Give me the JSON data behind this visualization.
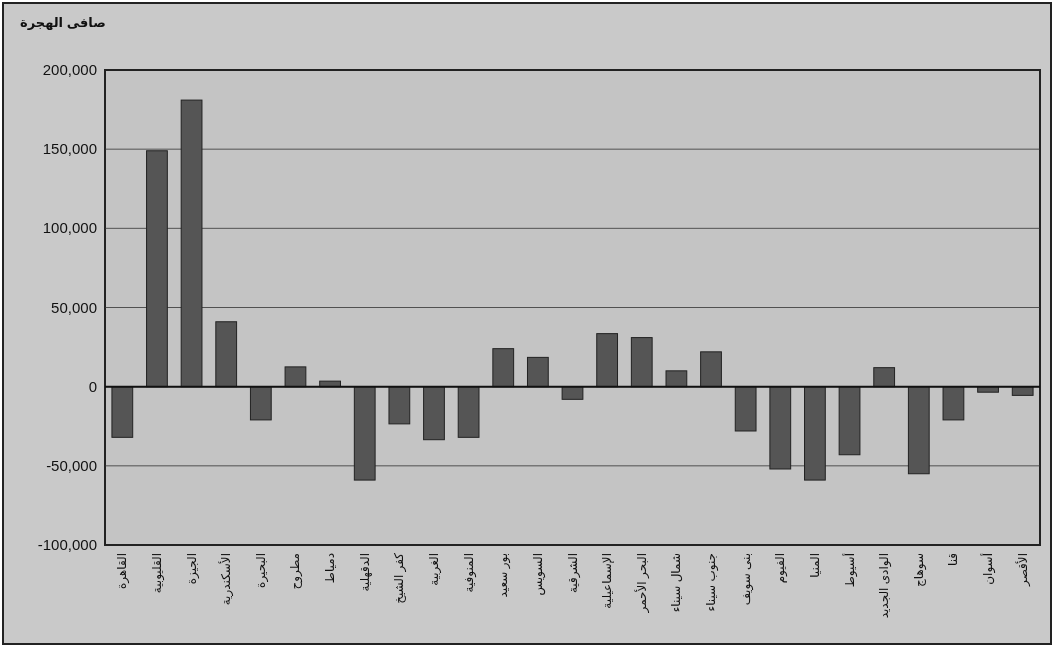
{
  "chart_data": {
    "type": "bar",
    "title": "صافى الهجرة",
    "categories": [
      "القاهرة",
      "القليوبية",
      "الجيزة",
      "الأسكندرية",
      "البحيرة",
      "مطروح",
      "دمياط",
      "الدقهلية",
      "كفر الشيخ",
      "الغربية",
      "المنوفية",
      "بور سعيد",
      "السويس",
      "الشرقية",
      "الإسماعيلية",
      "البحر الأحمر",
      "شمال سيناء",
      "جنوب سيناء",
      "بنى سويف",
      "الفيوم",
      "المنيا",
      "أسيوط",
      "الوادى الجديد",
      "سوهاج",
      "قنا",
      "أسوان",
      "الأقصر"
    ],
    "values": [
      -32000,
      149000,
      181000,
      41000,
      -21000,
      12500,
      3500,
      -59000,
      -23500,
      -33500,
      -32000,
      24000,
      18500,
      -8000,
      33500,
      31000,
      10000,
      22000,
      -28000,
      -52000,
      -59000,
      -43000,
      12000,
      -55000,
      -21000,
      -3500,
      -5500
    ],
    "color": "#555555",
    "ylim": [
      -100000,
      200000
    ],
    "yticks": [
      {
        "value": -100000,
        "label": "-100,000"
      },
      {
        "value": -50000,
        "label": "-50,000"
      },
      0,
      {
        "value": 50000,
        "label": "50,000"
      },
      {
        "value": 100000,
        "label": "100,000"
      },
      {
        "value": 150000,
        "label": "150,000"
      },
      {
        "value": 200000,
        "label": "200,000"
      }
    ],
    "grid": "y"
  }
}
